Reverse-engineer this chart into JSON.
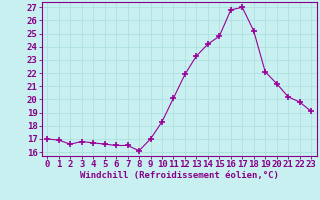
{
  "x": [
    0,
    1,
    2,
    3,
    4,
    5,
    6,
    7,
    8,
    9,
    10,
    11,
    12,
    13,
    14,
    15,
    16,
    17,
    18,
    19,
    20,
    21,
    22,
    23
  ],
  "y": [
    17.0,
    16.9,
    16.6,
    16.8,
    16.7,
    16.6,
    16.5,
    16.5,
    16.1,
    17.0,
    18.3,
    20.1,
    21.9,
    23.3,
    24.2,
    24.8,
    26.8,
    27.0,
    25.2,
    22.1,
    21.2,
    20.2,
    19.8,
    19.1
  ],
  "line_color": "#990099",
  "marker": "+",
  "marker_size": 4,
  "bg_color": "#c8f0f0",
  "grid_color": "#aadddd",
  "xlabel": "Windchill (Refroidissement éolien,°C)",
  "ylabel_ticks": [
    16,
    17,
    18,
    19,
    20,
    21,
    22,
    23,
    24,
    25,
    26,
    27
  ],
  "ylim": [
    15.7,
    27.4
  ],
  "xlim": [
    -0.5,
    23.5
  ],
  "xlabel_fontsize": 6.5,
  "tick_fontsize": 6.5,
  "label_color": "#880088"
}
